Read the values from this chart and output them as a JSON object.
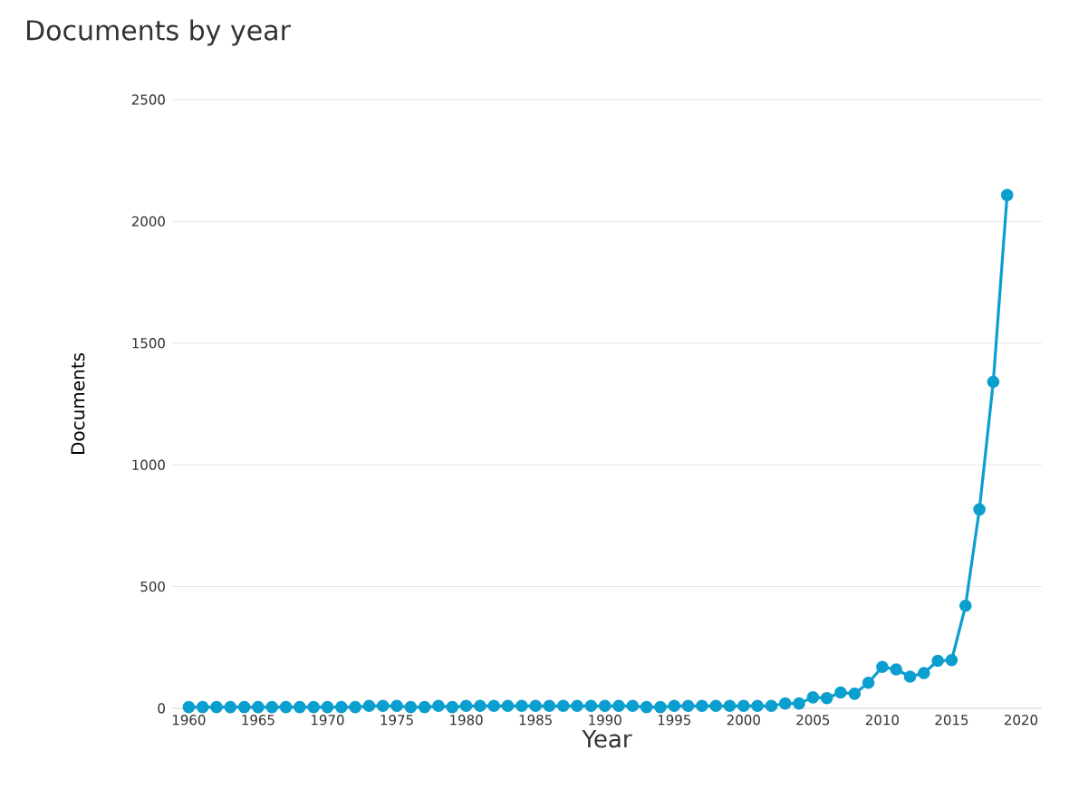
{
  "chart_data": {
    "type": "line",
    "title": "Documents by year",
    "xlabel": "Year",
    "ylabel": "Documents",
    "x": [
      1960,
      1961,
      1962,
      1963,
      1964,
      1965,
      1966,
      1967,
      1968,
      1969,
      1970,
      1971,
      1972,
      1973,
      1974,
      1975,
      1976,
      1977,
      1978,
      1979,
      1980,
      1981,
      1982,
      1983,
      1984,
      1985,
      1986,
      1987,
      1988,
      1989,
      1990,
      1991,
      1992,
      1993,
      1994,
      1995,
      1996,
      1997,
      1998,
      1999,
      2000,
      2001,
      2002,
      2003,
      2004,
      2005,
      2006,
      2007,
      2008,
      2009,
      2010,
      2011,
      2012,
      2013,
      2014,
      2015,
      2016,
      2017,
      2018,
      2019
    ],
    "series": [
      {
        "color": "#0a9fcf",
        "values": [
          5,
          5,
          5,
          5,
          5,
          5,
          5,
          5,
          5,
          5,
          5,
          5,
          5,
          10,
          10,
          10,
          5,
          5,
          10,
          5,
          10,
          10,
          10,
          10,
          10,
          10,
          10,
          10,
          10,
          10,
          10,
          10,
          10,
          5,
          5,
          10,
          10,
          10,
          10,
          10,
          10,
          10,
          10,
          20,
          20,
          45,
          42,
          65,
          60,
          105,
          170,
          160,
          130,
          145,
          195,
          198,
          421,
          817,
          1341,
          2108
        ]
      }
    ],
    "xlim": [
      1958.8,
      2021.5
    ],
    "ylim": [
      0,
      2500
    ],
    "xticks": [
      1960,
      1965,
      1970,
      1975,
      1980,
      1985,
      1990,
      1995,
      2000,
      2005,
      2010,
      2015,
      2020
    ],
    "yticks": [
      0,
      500,
      1000,
      1500,
      2000,
      2500
    ],
    "grid": "y",
    "marker": "circle",
    "line_style": "solid"
  }
}
